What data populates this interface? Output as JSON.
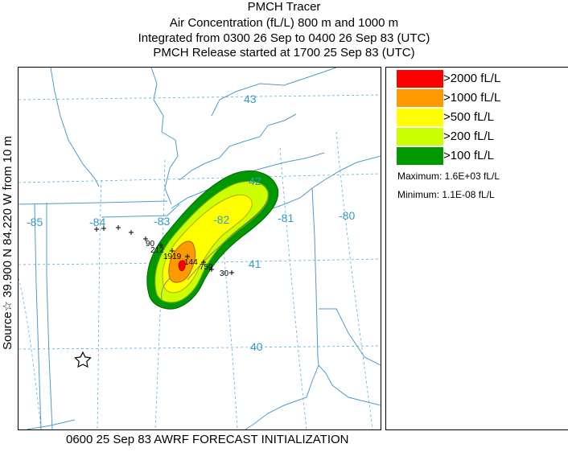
{
  "title": {
    "line1": "PMCH Tracer",
    "line2": "Air Concentration (fL/L)  800 m and  1000 m",
    "line3": "Integrated from 0300 26 Sep to 0400 26 Sep 83 (UTC)",
    "line4": "PMCH Release started at 1700 25 Sep 83 (UTC)"
  },
  "side_label": "Source☆ 39.900  N  84.220  W     from   10 m",
  "footer": "0600 25 Sep 83 AWRF FORECAST INITIALIZATION",
  "map": {
    "longitude_labels": [
      "-85",
      "-84",
      "-83",
      "-82",
      "-81",
      "-80"
    ],
    "latitude_labels": [
      "43",
      "42",
      "41",
      "40"
    ],
    "source_marker": "☆",
    "sampler_labels": [
      "90",
      "212",
      "1919",
      "144",
      "759",
      "30"
    ]
  },
  "legend": {
    "items": [
      {
        "label": ">2000 fL/L",
        "color": "#ff0000"
      },
      {
        "label": ">1000 fL/L",
        "color": "#ff9900"
      },
      {
        "label": ">500 fL/L",
        "color": "#ffff00"
      },
      {
        "label": ">200 fL/L",
        "color": "#ccff00"
      },
      {
        "label": ">100 fL/L",
        "color": "#009900"
      }
    ],
    "maximum": "Maximum: 1.6E+03 fL/L",
    "minimum": "Minimum: 1.1E-08 fL/L"
  },
  "colors": {
    "boundary_lines": "#4d9cc8",
    "grid_lines": "#5aaedb",
    "grid_labels": "#3399cc"
  }
}
